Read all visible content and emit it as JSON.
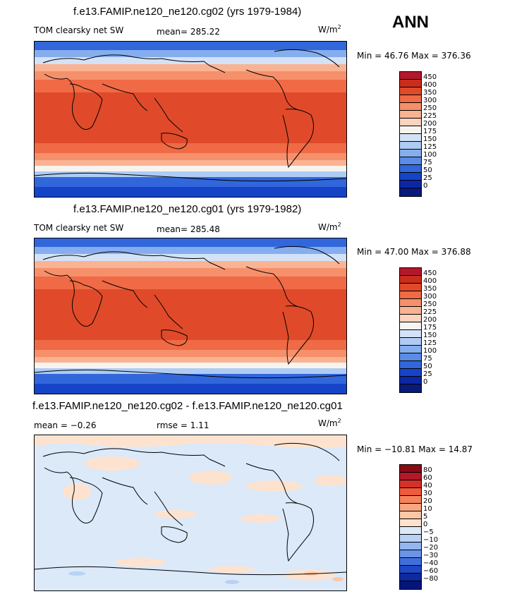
{
  "season": "ANN",
  "panels": [
    {
      "title": "f.e13.FAMIP.ne120_ne120.cg02 (yrs 1979-1984)",
      "variable": "TOM clearsky net SW",
      "stat1": "mean= 285.22",
      "stat2": "",
      "units_base": "W/m",
      "units_exp": "2",
      "minmax": "Min =  46.76 Max = 376.36",
      "colorbar_labels": [
        "450",
        "400",
        "350",
        "300",
        "250",
        "225",
        "200",
        "175",
        "150",
        "125",
        "100",
        "75",
        "50",
        "25",
        "0"
      ],
      "colors": [
        "#b2182b",
        "#cb2d1c",
        "#e04a2a",
        "#ef6a45",
        "#f5906b",
        "#f9b392",
        "#fbd3be",
        "#f7f3ef",
        "#d3e2f7",
        "#aecbf3",
        "#86aeee",
        "#5a8be6",
        "#3266db",
        "#1544c9",
        "#0b27a6",
        "#081a7a"
      ]
    },
    {
      "title": "f.e13.FAMIP.ne120_ne120.cg01 (yrs 1979-1982)",
      "variable": "TOM clearsky net SW",
      "stat1": "mean= 285.48",
      "stat2": "",
      "units_base": "W/m",
      "units_exp": "2",
      "minmax": "Min =  47.00 Max = 376.88",
      "colorbar_labels": [
        "450",
        "400",
        "350",
        "300",
        "250",
        "225",
        "200",
        "175",
        "150",
        "125",
        "100",
        "75",
        "50",
        "25",
        "0"
      ],
      "colors": [
        "#b2182b",
        "#cb2d1c",
        "#e04a2a",
        "#ef6a45",
        "#f5906b",
        "#f9b392",
        "#fbd3be",
        "#f7f3ef",
        "#d3e2f7",
        "#aecbf3",
        "#86aeee",
        "#5a8be6",
        "#3266db",
        "#1544c9",
        "#0b27a6",
        "#081a7a"
      ]
    },
    {
      "title": "f.e13.FAMIP.ne120_ne120.cg02 - f.e13.FAMIP.ne120_ne120.cg01",
      "variable": "",
      "stat1": "mean =  −0.26",
      "stat2": "rmse =   1.11",
      "units_base": "W/m",
      "units_exp": "2",
      "minmax": "Min = −10.81 Max =  14.87",
      "colorbar_labels": [
        "80",
        "60",
        "40",
        "30",
        "20",
        "10",
        "5",
        "0",
        "−5",
        "−10",
        "−20",
        "−30",
        "−40",
        "−60",
        "−80"
      ],
      "colors": [
        "#8b0a14",
        "#b2182b",
        "#d73027",
        "#ef5a3a",
        "#f6825c",
        "#f9a57f",
        "#fbc7a6",
        "#fde3cf",
        "#dbe9f9",
        "#b9d1f4",
        "#93b6ee",
        "#6a94e6",
        "#416fd9",
        "#1f48c4",
        "#0d2aa0",
        "#05157a"
      ]
    }
  ]
}
